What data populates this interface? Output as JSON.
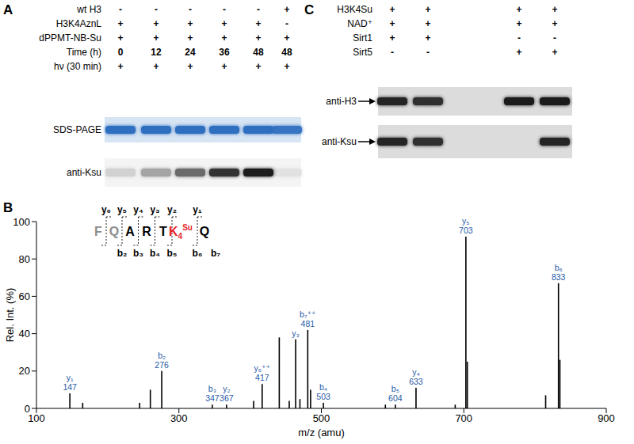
{
  "panel_a": {
    "panel_label": "A",
    "conditions": [
      {
        "name": "wt H3",
        "lanes": [
          "-",
          "-",
          "-",
          "-",
          "-",
          "+"
        ]
      },
      {
        "name": "H3K4AznL",
        "lanes": [
          "+",
          "+",
          "+",
          "+",
          "+",
          "-"
        ]
      },
      {
        "name": "dPPMT-NB-Su",
        "lanes": [
          "+",
          "+",
          "+",
          "+",
          "+",
          "+"
        ]
      },
      {
        "name": "Time (h)",
        "lanes": [
          "0",
          "12",
          "24",
          "36",
          "48",
          "48"
        ]
      },
      {
        "name": "hν (30 min)",
        "lanes": [
          "+",
          "+",
          "+",
          "+",
          "+",
          "+"
        ]
      }
    ],
    "blots": [
      {
        "name": "SDS-PAGE",
        "color": "#2f6fc0",
        "signal": [
          1,
          1,
          1,
          1,
          1,
          0.95
        ]
      },
      {
        "name": "anti-Ksu",
        "color": "#111111",
        "signal": [
          0.15,
          0.35,
          0.6,
          0.85,
          0.95,
          0.08
        ]
      }
    ]
  },
  "chart_data": {
    "panel_label": "B",
    "type": "bar",
    "x": [
      147,
      165,
      245,
      260,
      276,
      347,
      367,
      405,
      417,
      441,
      455,
      464,
      470,
      481,
      485,
      503,
      590,
      604,
      633,
      688,
      703,
      705,
      815,
      833,
      835
    ],
    "values": [
      8,
      3,
      3,
      10,
      20,
      2,
      2,
      4,
      13,
      38,
      4,
      37,
      5,
      42,
      10,
      3,
      2,
      2,
      11,
      2,
      92,
      25,
      7,
      67,
      26
    ],
    "peak_labels": [
      {
        "ion": "y₁",
        "mz": "147"
      },
      null,
      null,
      null,
      {
        "ion": "b₂",
        "mz": "276"
      },
      {
        "ion": "b₃",
        "mz": "347"
      },
      {
        "ion": "y₂",
        "mz": "367"
      },
      null,
      {
        "ion": "y₆⁺⁺",
        "mz": "417"
      },
      null,
      null,
      {
        "ion": "y₃"
      },
      null,
      {
        "ion": "b₇⁺⁺",
        "mz": "481"
      },
      null,
      {
        "ion": "b₄",
        "mz": "503"
      },
      null,
      {
        "ion": "b₅",
        "mz": "604"
      },
      {
        "ion": "y₄",
        "mz": "633"
      },
      null,
      {
        "ion": "y₅",
        "mz": "703"
      },
      null,
      null,
      {
        "ion": "b₆",
        "mz": "833"
      },
      null
    ],
    "color": "#000000",
    "label_color": "#1f5aa6",
    "x_label": "m/z (amu)",
    "y_label": "Rel. Int. (%)",
    "xlim": [
      100,
      900
    ],
    "xticks": [
      100,
      300,
      500,
      700,
      900
    ],
    "ylim": [
      0,
      100
    ],
    "yticks": [
      0,
      20,
      40,
      60,
      80,
      100
    ],
    "grid": false,
    "sequence": [
      {
        "residue": "F",
        "color": "#8c8c8c"
      },
      {
        "residue": "Q",
        "color": "#8c8c8c"
      },
      {
        "residue": "A",
        "color": "#000000"
      },
      {
        "residue": "R",
        "color": "#000000"
      },
      {
        "residue": "T",
        "color": "#000000"
      },
      {
        "residue": "K",
        "position": "4",
        "modification": "Su",
        "color": "#e8262a"
      },
      {
        "residue": "Q",
        "color": "#000000"
      }
    ],
    "y_ions": [
      "y₆",
      "y₅",
      "y₄",
      "y₃",
      "y₂",
      "y₁"
    ],
    "b_ions": [
      "b₂",
      "b₃",
      "b₄",
      "b₅",
      "b₆",
      "b₇"
    ]
  },
  "panel_c": {
    "panel_label": "C",
    "conditions": [
      {
        "name": "H3K4Su",
        "lanes": [
          "+",
          "+",
          "+",
          "+"
        ]
      },
      {
        "name": "NAD⁺",
        "lanes": [
          "+",
          "+",
          "+",
          "+"
        ]
      },
      {
        "name": "Sirt1",
        "lanes": [
          "+",
          "+",
          "-",
          "-"
        ]
      },
      {
        "name": "Sirt5",
        "lanes": [
          "-",
          "-",
          "+",
          "+"
        ]
      }
    ],
    "blots": [
      {
        "name": "anti-H3",
        "color": "#111111",
        "signal": [
          0.9,
          0.85,
          0.95,
          0.95
        ]
      },
      {
        "name": "anti-Ksu",
        "color": "#111111",
        "signal": [
          0.9,
          0.85,
          0,
          0.9
        ]
      }
    ]
  }
}
